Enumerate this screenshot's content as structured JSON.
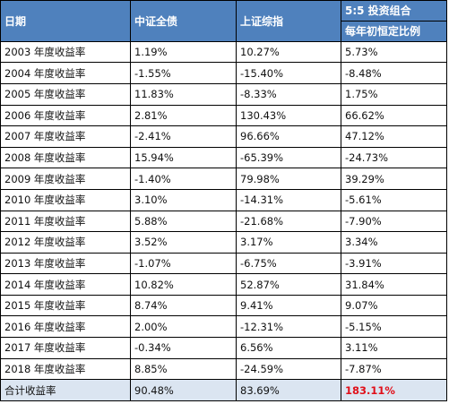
{
  "headers": {
    "date": "日期",
    "bond": "中证全债",
    "sse": "上证综指",
    "portfolio_line1": "5:5 投资组合",
    "portfolio_line2": "每年初恒定比例"
  },
  "rows": [
    {
      "label": "2003 年度收益率",
      "bond": "1.19%",
      "sse": "10.27%",
      "portfolio": "5.73%"
    },
    {
      "label": "2004 年度收益率",
      "bond": "-1.55%",
      "sse": "-15.40%",
      "portfolio": "-8.48%"
    },
    {
      "label": "2005 年度收益率",
      "bond": "11.83%",
      "sse": "-8.33%",
      "portfolio": "1.75%"
    },
    {
      "label": "2006 年度收益率",
      "bond": "2.81%",
      "sse": "130.43%",
      "portfolio": "66.62%"
    },
    {
      "label": "2007 年度收益率",
      "bond": "-2.41%",
      "sse": "96.66%",
      "portfolio": "47.12%"
    },
    {
      "label": "2008 年度收益率",
      "bond": "15.94%",
      "sse": "-65.39%",
      "portfolio": "-24.73%"
    },
    {
      "label": "2009 年度收益率",
      "bond": "-1.40%",
      "sse": "79.98%",
      "portfolio": "39.29%"
    },
    {
      "label": "2010 年度收益率",
      "bond": "3.10%",
      "sse": "-14.31%",
      "portfolio": "-5.61%"
    },
    {
      "label": "2011 年度收益率",
      "bond": "5.88%",
      "sse": "-21.68%",
      "portfolio": "-7.90%"
    },
    {
      "label": "2012 年度收益率",
      "bond": "3.52%",
      "sse": "3.17%",
      "portfolio": "3.34%"
    },
    {
      "label": "2013 年度收益率",
      "bond": "-1.07%",
      "sse": "-6.75%",
      "portfolio": "-3.91%"
    },
    {
      "label": "2014 年度收益率",
      "bond": "10.82%",
      "sse": "52.87%",
      "portfolio": "31.84%"
    },
    {
      "label": "2015 年度收益率",
      "bond": "8.74%",
      "sse": "9.41%",
      "portfolio": "9.07%"
    },
    {
      "label": "2016 年度收益率",
      "bond": "2.00%",
      "sse": "-12.31%",
      "portfolio": "-5.15%"
    },
    {
      "label": "2017 年度收益率",
      "bond": "-0.34%",
      "sse": "6.56%",
      "portfolio": "3.11%"
    },
    {
      "label": "2018 年度收益率",
      "bond": "8.85%",
      "sse": "-24.59%",
      "portfolio": "-7.87%"
    }
  ],
  "total": {
    "label": "合计收益率",
    "bond": "90.48%",
    "sse": "83.69%",
    "portfolio": "183.11%"
  },
  "colors": {
    "header_bg": "#4f81bd",
    "total_bg": "#dbe5f1",
    "highlight": "#e0101a"
  }
}
